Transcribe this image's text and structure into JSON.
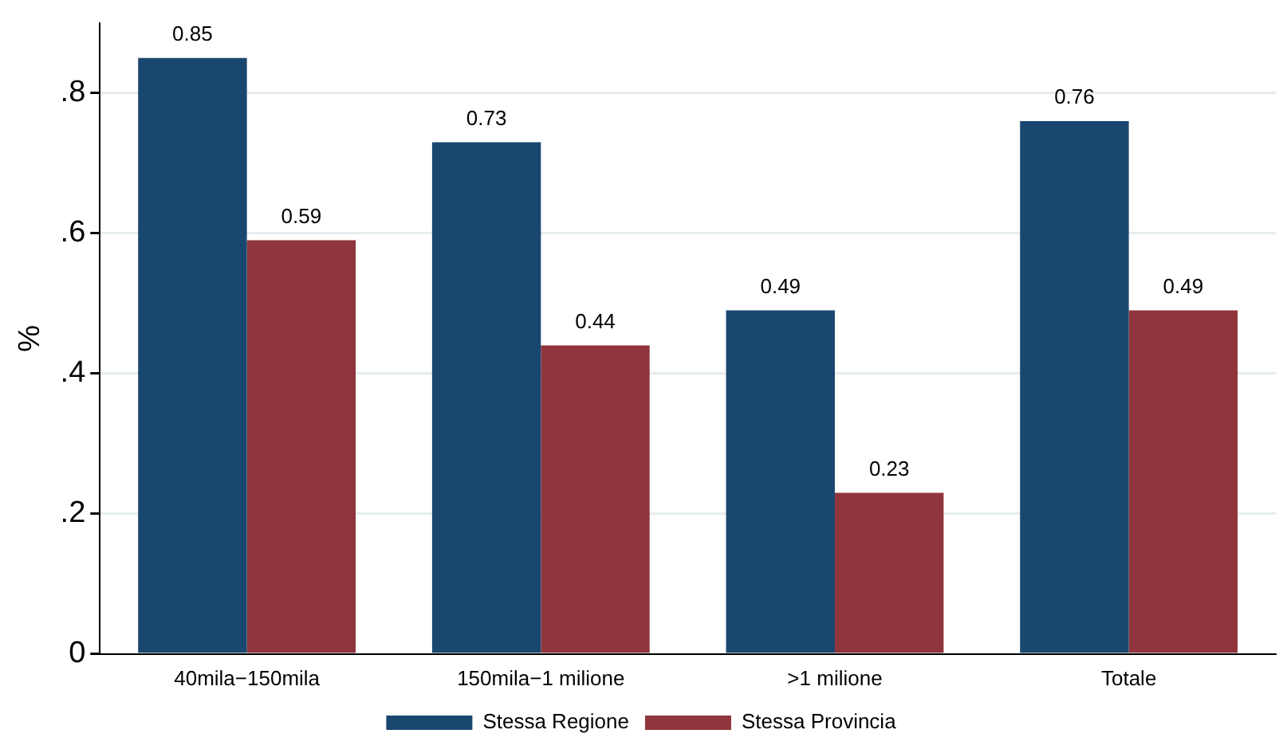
{
  "chart_data": {
    "type": "bar",
    "ylabel": "%",
    "categories": [
      "40mila−150mila",
      "150mila−1 milione",
      ">1 milione",
      "Totale"
    ],
    "series": [
      {
        "name": "Stessa Regione",
        "color": "#1a476f",
        "values": [
          0.85,
          0.73,
          0.49,
          0.76
        ]
      },
      {
        "name": "Stessa Provincia",
        "color": "#90353b",
        "values": [
          0.59,
          0.44,
          0.23,
          0.49
        ]
      }
    ],
    "ylim": [
      0,
      0.9
    ],
    "yticks": [
      0,
      {
        "value": 0.2,
        "label": ".2"
      },
      {
        "value": 0.4,
        "label": ".4"
      },
      {
        "value": 0.6,
        "label": ".6"
      },
      {
        "value": 0.8,
        "label": ".8"
      }
    ],
    "grid": "y",
    "legend": "bottom",
    "data_labels": true
  }
}
